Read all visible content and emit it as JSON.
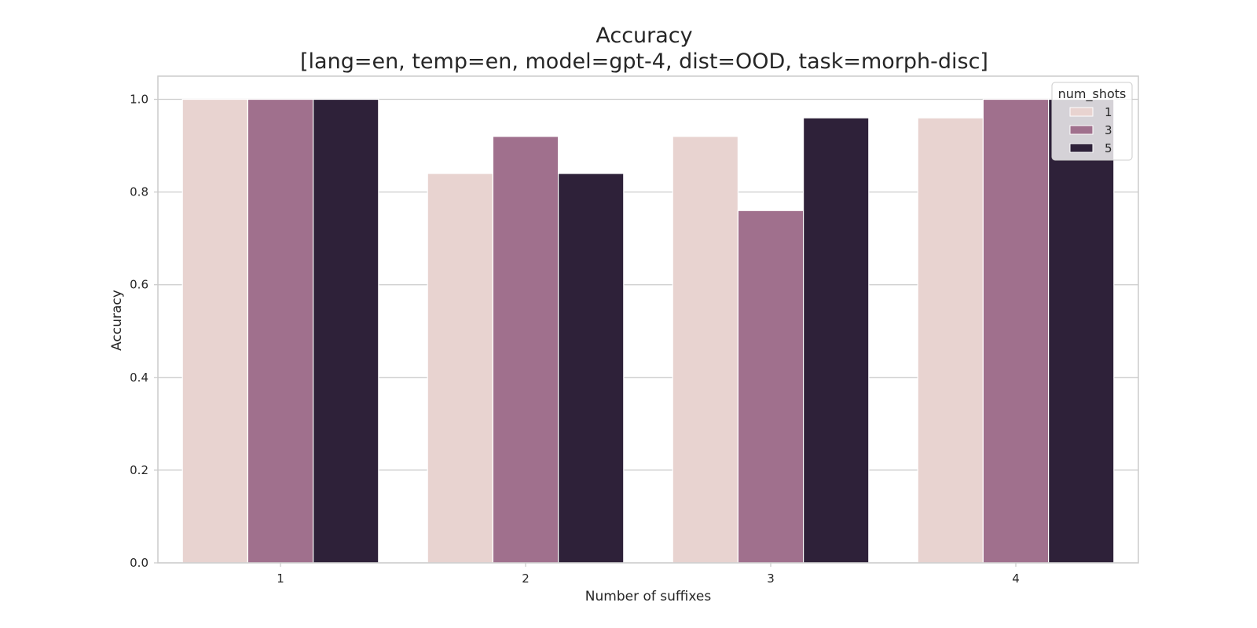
{
  "chart_data": {
    "type": "bar",
    "title": "Accuracy",
    "subtitle": "[lang=en, temp=en, model=gpt-4, dist=OOD, task=morph-disc]",
    "xlabel": "Number of suffixes",
    "ylabel": "Accuracy",
    "categories": [
      "1",
      "2",
      "3",
      "4"
    ],
    "ylim": [
      0,
      1.05
    ],
    "yticks": [
      "0.0",
      "0.2",
      "0.4",
      "0.6",
      "0.8",
      "1.0"
    ],
    "grid": true,
    "legend": {
      "title": "num_shots",
      "placement": "top-right"
    },
    "series": [
      {
        "name": "1",
        "color": "#e8d3d0",
        "values": [
          1.0,
          0.84,
          0.92,
          0.96
        ]
      },
      {
        "name": "3",
        "color": "#a0708d",
        "values": [
          1.0,
          0.92,
          0.76,
          1.0
        ]
      },
      {
        "name": "5",
        "color": "#2e2139",
        "values": [
          1.0,
          0.84,
          0.96,
          1.0
        ]
      }
    ]
  }
}
